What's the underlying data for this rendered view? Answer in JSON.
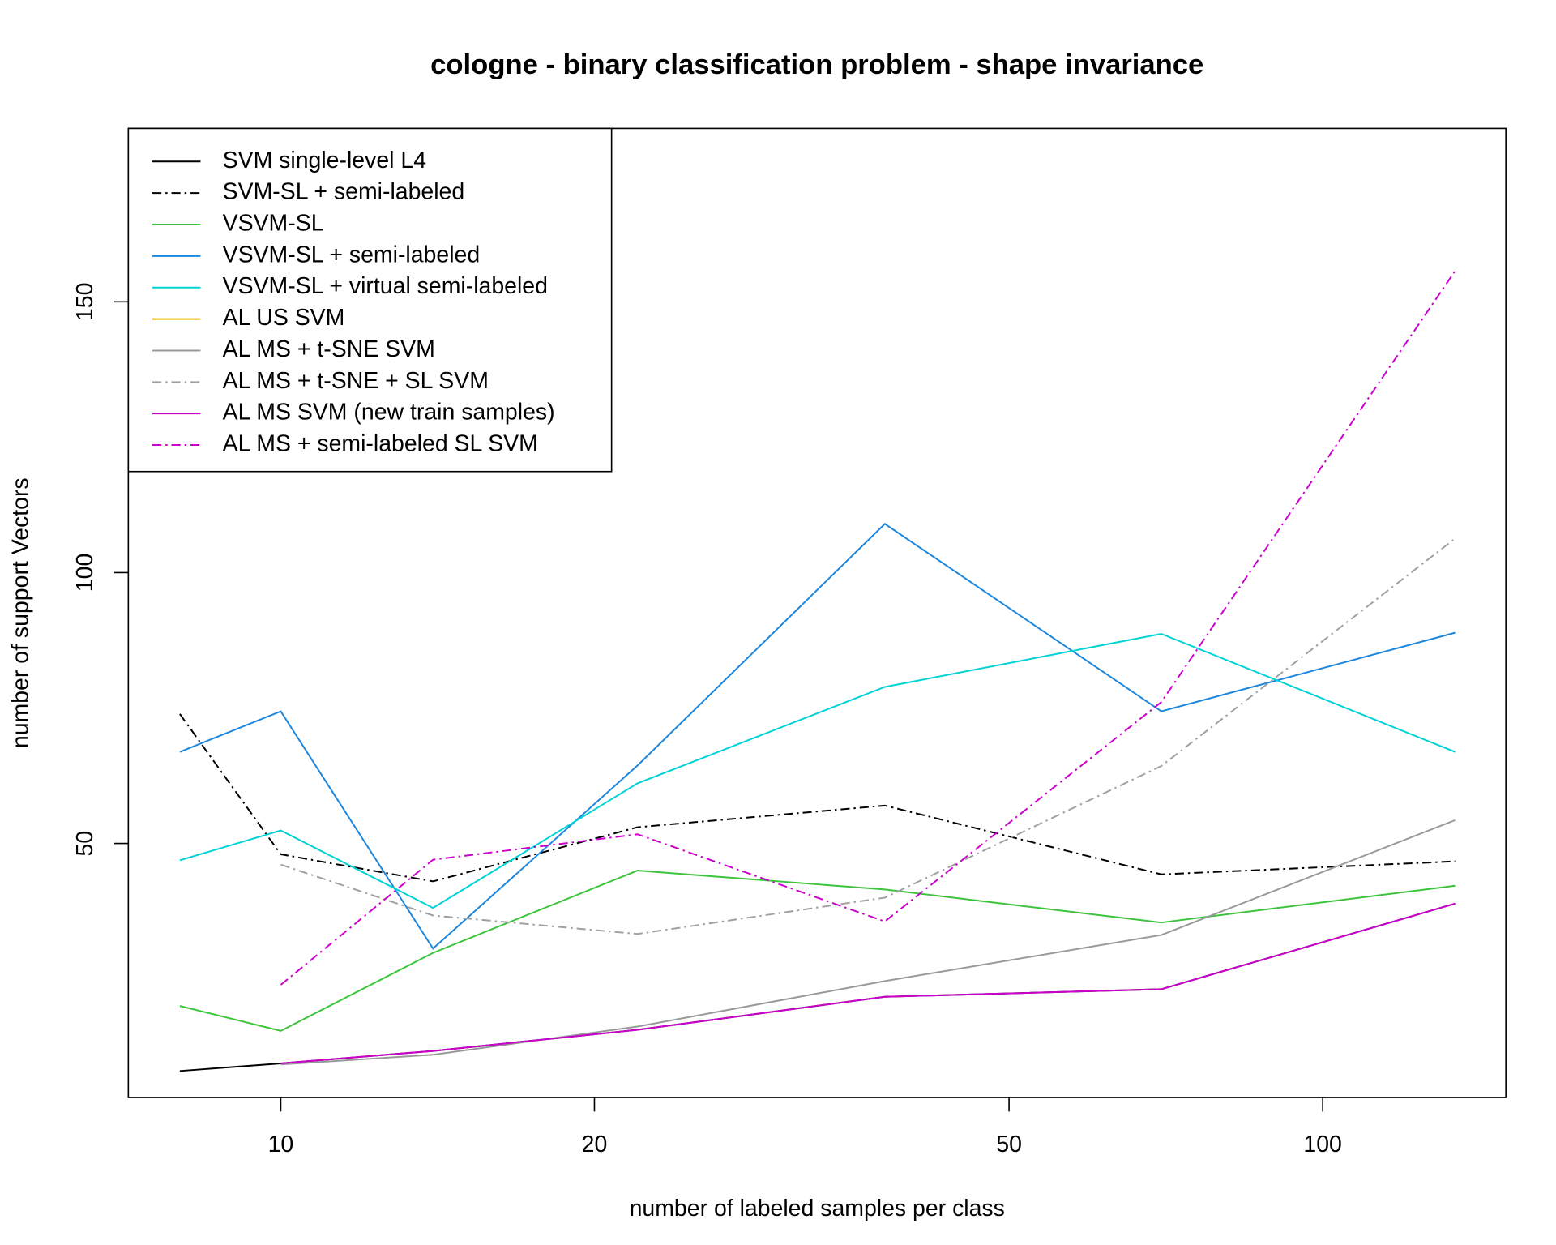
{
  "chart_data": {
    "type": "line",
    "title": "cologne - binary classification problem - shape invariance",
    "x_label": "number of labeled samples per class",
    "y_label": "number of support Vectors",
    "x": [
      8,
      10,
      14,
      22,
      38,
      70,
      134
    ],
    "xlog": true,
    "xlim": [
      7.14,
      149.9
    ],
    "xticks": [
      10,
      20,
      50,
      100
    ],
    "ylim": [
      3.1,
      182
    ],
    "yticks": [
      50,
      100,
      150
    ],
    "grid": false,
    "legend": "topleft",
    "series": [
      {
        "name": "SVM single-level L4",
        "color": "#000000",
        "dash": false,
        "values": [
          8,
          9.4,
          11.7,
          15.6,
          21.7,
          23.1,
          38.9
        ]
      },
      {
        "name": "SVM-SL + semi-labeled",
        "color": "#000000",
        "dash": true,
        "values": [
          73.9,
          48,
          43,
          53,
          57,
          44.3,
          46.7
        ]
      },
      {
        "name": "VSVM-SL",
        "color": "#3cc43c",
        "dash": false,
        "values": [
          20,
          15.4,
          29.8,
          45,
          41.5,
          35.4,
          42.2
        ]
      },
      {
        "name": "VSVM-SL + semi-labeled",
        "color": "#1c86dc",
        "dash": false,
        "values": [
          66.9,
          74.4,
          30.6,
          64.4,
          109,
          74.4,
          88.9
        ]
      },
      {
        "name": "VSVM-SL + virtual semi-labeled",
        "color": "#00d2d6",
        "dash": false,
        "values": [
          46.9,
          52.4,
          38.1,
          61.1,
          78.9,
          88.7,
          66.9
        ]
      },
      {
        "name": "AL US SVM",
        "color": "#e0b800",
        "dash": false,
        "values": [
          null,
          null,
          null,
          null,
          null,
          null,
          null
        ]
      },
      {
        "name": "AL MS + t-SNE SVM",
        "color": "#999999",
        "dash": false,
        "values": [
          null,
          9.2,
          11,
          16.2,
          24.6,
          33.1,
          54.3
        ]
      },
      {
        "name": "AL MS + t-SNE + SL SVM",
        "color": "#a0a0a0",
        "dash": true,
        "values": [
          null,
          46.1,
          36.7,
          33.3,
          40,
          64.3,
          106.3
        ]
      },
      {
        "name": "AL MS SVM (new train samples)",
        "color": "#cc00cc",
        "dash": false,
        "values": [
          null,
          9.4,
          11.7,
          15.6,
          21.7,
          23.1,
          38.9
        ]
      },
      {
        "name": "AL MS + semi-labeled SL SVM",
        "color": "#cc00cc",
        "dash": true,
        "values": [
          null,
          23.9,
          47,
          51.7,
          35.6,
          76.1,
          155.7
        ]
      }
    ]
  }
}
